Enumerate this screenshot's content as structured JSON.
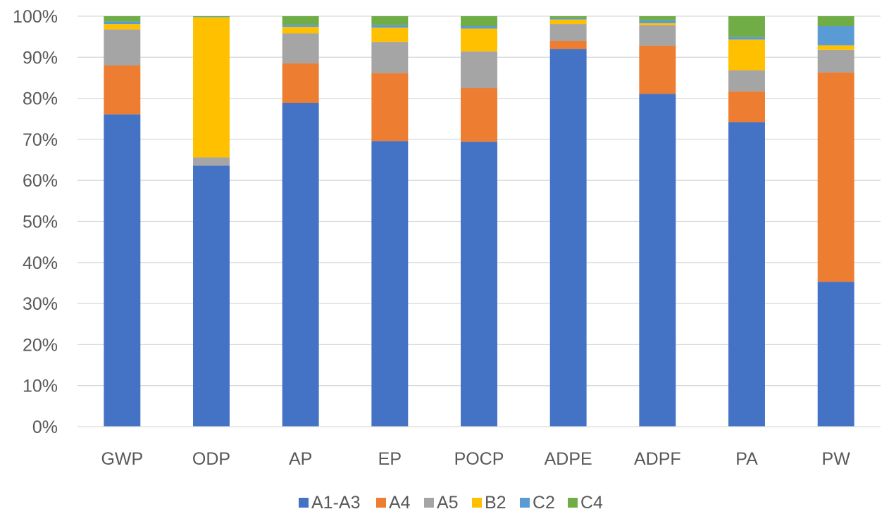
{
  "chart_data": {
    "type": "bar",
    "stacked": true,
    "title": "",
    "xlabel": "",
    "ylabel": "",
    "ylim": [
      0,
      100
    ],
    "y_ticks": [
      "0%",
      "10%",
      "20%",
      "30%",
      "40%",
      "50%",
      "60%",
      "70%",
      "80%",
      "90%",
      "100%"
    ],
    "grid": true,
    "legend_position": "bottom",
    "categories": [
      "GWP",
      "ODP",
      "AP",
      "EP",
      "POCP",
      "ADPE",
      "ADPF",
      "PA",
      "PW"
    ],
    "series": [
      {
        "name": "A1-A3",
        "color": "#4472C4",
        "values": [
          76.1,
          63.6,
          78.9,
          69.6,
          69.4,
          92.0,
          81.1,
          74.2,
          35.3
        ]
      },
      {
        "name": "A4",
        "color": "#ED7D31",
        "values": [
          11.9,
          0.0,
          9.6,
          16.5,
          13.1,
          2.0,
          11.7,
          7.5,
          51.0
        ]
      },
      {
        "name": "A5",
        "color": "#A5A5A5",
        "values": [
          8.8,
          2.0,
          7.3,
          7.6,
          8.9,
          4.1,
          5.0,
          5.1,
          5.5
        ]
      },
      {
        "name": "B2",
        "color": "#FFC000",
        "values": [
          1.3,
          34.1,
          1.6,
          3.5,
          5.6,
          1.1,
          0.5,
          7.5,
          1.1
        ]
      },
      {
        "name": "C2",
        "color": "#5B9BD5",
        "values": [
          0.6,
          0.1,
          0.5,
          0.6,
          0.6,
          0.3,
          0.7,
          0.6,
          4.7
        ]
      },
      {
        "name": "C4",
        "color": "#70AD47",
        "values": [
          1.3,
          0.2,
          2.1,
          2.2,
          2.4,
          0.5,
          1.0,
          5.1,
          2.4
        ]
      }
    ]
  }
}
